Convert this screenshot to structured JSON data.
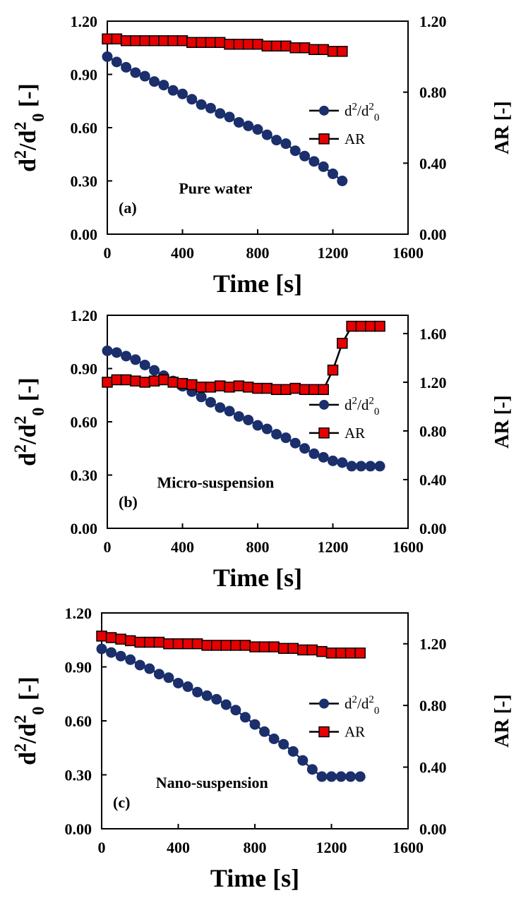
{
  "chart_data": [
    {
      "type": "line",
      "panel": "(a)",
      "annotation": "Pure water",
      "xlabel": "Time [s]",
      "ylabel_left": "d²/d²₀ [-]",
      "ylabel_right": "AR [-]",
      "xlim": [
        0,
        1600
      ],
      "xticks": [
        "0",
        "400",
        "800",
        "1200",
        "1600"
      ],
      "ylim_left": [
        0,
        1.2
      ],
      "yticks_left": [
        "0.00",
        "0.30",
        "0.60",
        "0.90",
        "1.20"
      ],
      "ylim_right": [
        0,
        1.2
      ],
      "yticks_right": [
        "0.00",
        "0.40",
        "0.80",
        "1.20"
      ],
      "grid": false,
      "legend_position": "right-middle",
      "series": [
        {
          "name": "d²/d²₀",
          "axis": "left",
          "marker": "circle",
          "color": "#1a2f6b",
          "x": [
            0,
            50,
            100,
            150,
            200,
            250,
            300,
            350,
            400,
            450,
            500,
            550,
            600,
            650,
            700,
            750,
            800,
            850,
            900,
            950,
            1000,
            1050,
            1100,
            1150,
            1200,
            1250
          ],
          "y": [
            1.0,
            0.97,
            0.94,
            0.91,
            0.89,
            0.86,
            0.84,
            0.81,
            0.79,
            0.76,
            0.73,
            0.71,
            0.68,
            0.66,
            0.63,
            0.61,
            0.59,
            0.56,
            0.53,
            0.51,
            0.47,
            0.44,
            0.41,
            0.38,
            0.34,
            0.3
          ]
        },
        {
          "name": "AR",
          "axis": "right",
          "marker": "square",
          "color": "#e60000",
          "x": [
            0,
            50,
            100,
            150,
            200,
            250,
            300,
            350,
            400,
            450,
            500,
            550,
            600,
            650,
            700,
            750,
            800,
            850,
            900,
            950,
            1000,
            1050,
            1100,
            1150,
            1200,
            1250
          ],
          "y": [
            1.1,
            1.1,
            1.09,
            1.09,
            1.09,
            1.09,
            1.09,
            1.09,
            1.09,
            1.08,
            1.08,
            1.08,
            1.08,
            1.07,
            1.07,
            1.07,
            1.07,
            1.06,
            1.06,
            1.06,
            1.05,
            1.05,
            1.04,
            1.04,
            1.03,
            1.03
          ]
        }
      ]
    },
    {
      "type": "line",
      "panel": "(b)",
      "annotation": "Micro-suspension",
      "xlabel": "Time [s]",
      "ylabel_left": "d²/d²₀ [-]",
      "ylabel_right": "AR [-]",
      "xlim": [
        0,
        1600
      ],
      "xticks": [
        "0",
        "400",
        "800",
        "1200",
        "1600"
      ],
      "ylim_left": [
        0,
        1.2
      ],
      "yticks_left": [
        "0.00",
        "0.30",
        "0.60",
        "0.90",
        "1.20"
      ],
      "ylim_right": [
        0,
        1.75
      ],
      "yticks_right": [
        "0.00",
        "0.40",
        "0.80",
        "1.20",
        "1.60"
      ],
      "grid": false,
      "legend_position": "right-middle",
      "series": [
        {
          "name": "d²/d²₀",
          "axis": "left",
          "marker": "circle",
          "color": "#1a2f6b",
          "x": [
            0,
            50,
            100,
            150,
            200,
            250,
            300,
            350,
            400,
            450,
            500,
            550,
            600,
            650,
            700,
            750,
            800,
            850,
            900,
            950,
            1000,
            1050,
            1100,
            1150,
            1200,
            1250,
            1300,
            1350,
            1400,
            1450
          ],
          "y": [
            1.0,
            0.99,
            0.97,
            0.95,
            0.92,
            0.89,
            0.86,
            0.83,
            0.8,
            0.77,
            0.74,
            0.71,
            0.68,
            0.66,
            0.63,
            0.61,
            0.58,
            0.56,
            0.53,
            0.51,
            0.48,
            0.45,
            0.42,
            0.4,
            0.38,
            0.37,
            0.35,
            0.35,
            0.35,
            0.35
          ]
        },
        {
          "name": "AR",
          "axis": "right",
          "marker": "square",
          "color": "#e60000",
          "x": [
            0,
            50,
            100,
            150,
            200,
            250,
            300,
            350,
            400,
            450,
            500,
            550,
            600,
            650,
            700,
            750,
            800,
            850,
            900,
            950,
            1000,
            1050,
            1100,
            1150,
            1200,
            1250,
            1300,
            1350,
            1400,
            1450
          ],
          "y": [
            1.2,
            1.22,
            1.22,
            1.21,
            1.2,
            1.21,
            1.22,
            1.2,
            1.19,
            1.18,
            1.16,
            1.16,
            1.17,
            1.16,
            1.17,
            1.16,
            1.15,
            1.15,
            1.14,
            1.14,
            1.15,
            1.14,
            1.14,
            1.14,
            1.3,
            1.52,
            1.66,
            1.66,
            1.66,
            1.66
          ]
        }
      ]
    },
    {
      "type": "line",
      "panel": "(c)",
      "annotation": "Nano-suspension",
      "xlabel": "Time [s]",
      "ylabel_left": "d²/d²₀ [-]",
      "ylabel_right": "AR [-]",
      "xlim": [
        0,
        1600
      ],
      "xticks": [
        "0",
        "400",
        "800",
        "1200",
        "1600"
      ],
      "ylim_left": [
        0,
        1.2
      ],
      "yticks_left": [
        "0.00",
        "0.30",
        "0.60",
        "0.90",
        "1.20"
      ],
      "ylim_right": [
        0,
        1.4
      ],
      "yticks_right": [
        "0.00",
        "0.40",
        "0.80",
        "1.20"
      ],
      "grid": false,
      "legend_position": "right-middle",
      "series": [
        {
          "name": "d²/d²₀",
          "axis": "left",
          "marker": "circle",
          "color": "#1a2f6b",
          "x": [
            0,
            50,
            100,
            150,
            200,
            250,
            300,
            350,
            400,
            450,
            500,
            550,
            600,
            650,
            700,
            750,
            800,
            850,
            900,
            950,
            1000,
            1050,
            1100,
            1150,
            1200,
            1250,
            1300,
            1350
          ],
          "y": [
            1.0,
            0.98,
            0.96,
            0.94,
            0.91,
            0.89,
            0.86,
            0.84,
            0.81,
            0.79,
            0.76,
            0.74,
            0.72,
            0.69,
            0.66,
            0.62,
            0.58,
            0.54,
            0.5,
            0.47,
            0.43,
            0.38,
            0.33,
            0.29,
            0.29,
            0.29,
            0.29,
            0.29
          ]
        },
        {
          "name": "AR",
          "axis": "right",
          "marker": "square",
          "color": "#e60000",
          "x": [
            0,
            50,
            100,
            150,
            200,
            250,
            300,
            350,
            400,
            450,
            500,
            550,
            600,
            650,
            700,
            750,
            800,
            850,
            900,
            950,
            1000,
            1050,
            1100,
            1150,
            1200,
            1250,
            1300,
            1350
          ],
          "y": [
            1.25,
            1.24,
            1.23,
            1.22,
            1.21,
            1.21,
            1.21,
            1.2,
            1.2,
            1.2,
            1.2,
            1.19,
            1.19,
            1.19,
            1.19,
            1.19,
            1.18,
            1.18,
            1.18,
            1.17,
            1.17,
            1.16,
            1.16,
            1.15,
            1.14,
            1.14,
            1.14,
            1.14
          ]
        }
      ]
    }
  ]
}
